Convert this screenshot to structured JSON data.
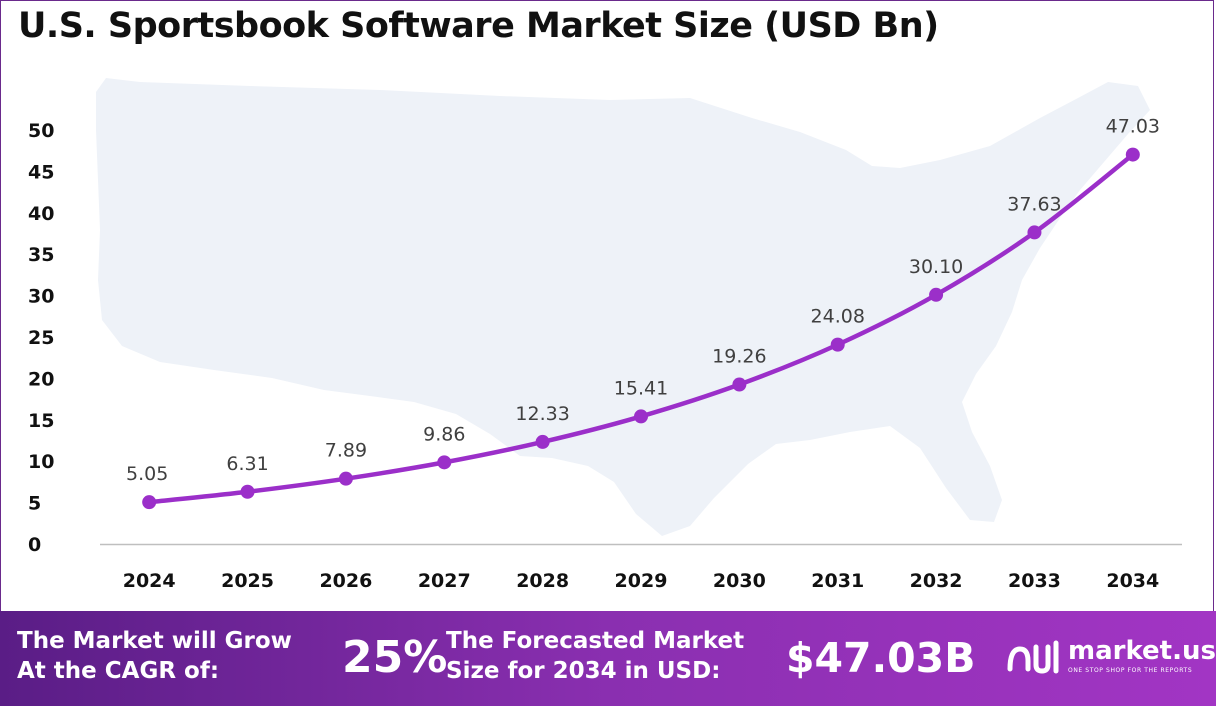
{
  "title": "U.S. Sportsbook Software Market Size (USD Bn)",
  "colors": {
    "line": "#9b2fc9",
    "footer_start": "#5a1d86",
    "footer_end": "#a235c4",
    "map": "#eef2f8",
    "axis": "#bfbfbf"
  },
  "chart_data": {
    "type": "line",
    "title": "U.S. Sportsbook Software Market Size (USD Bn)",
    "categories": [
      "2024",
      "2025",
      "2026",
      "2027",
      "2028",
      "2029",
      "2030",
      "2031",
      "2032",
      "2033",
      "2034"
    ],
    "series": [
      {
        "values": [
          5.05,
          6.31,
          7.89,
          9.86,
          12.33,
          15.41,
          19.26,
          24.08,
          30.1,
          37.63,
          47.03
        ],
        "labels": [
          "5.05",
          "6.31",
          "7.89",
          "9.86",
          "12.33",
          "15.41",
          "19.26",
          "24.08",
          "30.10",
          "37.63",
          "47.03"
        ]
      }
    ],
    "ylim": [
      0,
      50
    ],
    "yticks": [
      0,
      5,
      10,
      15,
      20,
      25,
      30,
      35,
      40,
      45,
      50
    ],
    "ytick_labels": [
      "0",
      "5",
      "10",
      "15",
      "20",
      "25",
      "30",
      "35",
      "40",
      "45",
      "50"
    ],
    "grid": false,
    "data_labels": true,
    "background": "us-map-silhouette"
  },
  "footer": {
    "cagr_label_line1": "The Market will Grow",
    "cagr_label_line2": "At the CAGR of:",
    "cagr_value": "25%",
    "forecast_label_line1": "The Forecasted Market",
    "forecast_label_line2": "Size for 2034 in USD:",
    "forecast_value": "$47.03B",
    "logo_name": "market.us",
    "logo_tagline": "ONE STOP SHOP FOR THE REPORTS",
    "logo_icon": "market-us-logo-icon"
  }
}
